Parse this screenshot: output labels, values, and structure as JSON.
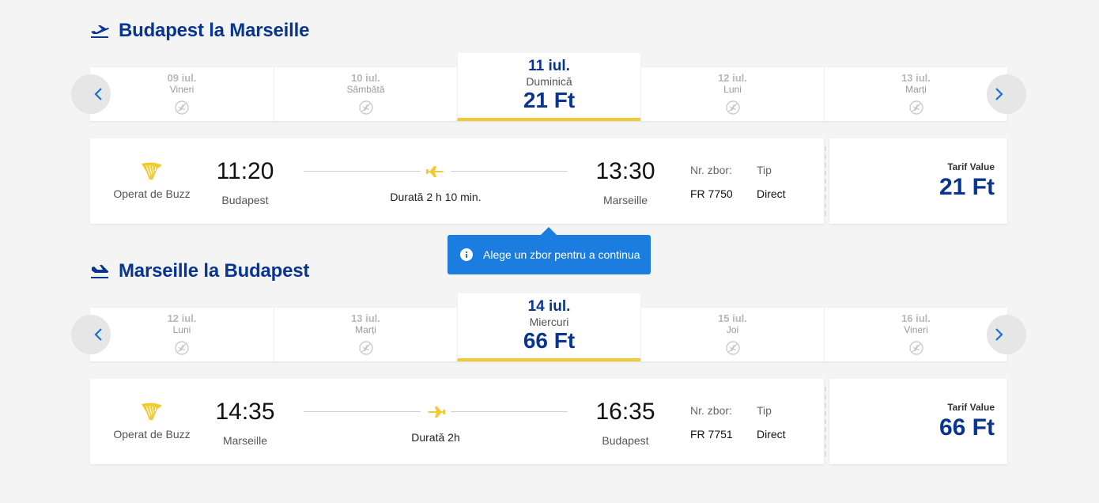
{
  "outbound": {
    "title": "Budapest la Marseille",
    "dates": [
      {
        "date": "09 iul.",
        "weekday": "Vineri",
        "available": false
      },
      {
        "date": "10 iul.",
        "weekday": "Sâmbătă",
        "available": false
      },
      {
        "date": "11 iul.",
        "weekday": "Duminică",
        "price": "21 Ft",
        "selected": true
      },
      {
        "date": "12 iul.",
        "weekday": "Luni",
        "available": false
      },
      {
        "date": "13 iul.",
        "weekday": "Marți",
        "available": false
      }
    ],
    "flight": {
      "operator": "Operat de Buzz",
      "depart_time": "11:20",
      "depart_city": "Budapest",
      "duration": "Durată 2 h 10 min.",
      "arrive_time": "13:30",
      "arrive_city": "Marseille",
      "flight_no_label": "Nr. zbor:",
      "flight_no": "FR 7750",
      "type_label": "Tip",
      "type": "Direct",
      "fare_label": "Tarif Value",
      "fare_price": "21 Ft"
    }
  },
  "toast": {
    "message": "Alege un zbor pentru a continua"
  },
  "inbound": {
    "title": "Marseille la Budapest",
    "dates": [
      {
        "date": "12 iul.",
        "weekday": "Luni",
        "available": false
      },
      {
        "date": "13 iul.",
        "weekday": "Marți",
        "available": false
      },
      {
        "date": "14 iul.",
        "weekday": "Miercuri",
        "price": "66 Ft",
        "selected": true
      },
      {
        "date": "15 iul.",
        "weekday": "Joi",
        "available": false
      },
      {
        "date": "16 iul.",
        "weekday": "Vineri",
        "available": false
      }
    ],
    "flight": {
      "operator": "Operat de Buzz",
      "depart_time": "14:35",
      "depart_city": "Marseille",
      "duration": "Durată 2h",
      "arrive_time": "16:35",
      "arrive_city": "Budapest",
      "flight_no_label": "Nr. zbor:",
      "flight_no": "FR 7751",
      "type_label": "Tip",
      "type": "Direct",
      "fare_label": "Tarif Value",
      "fare_price": "66 Ft"
    }
  },
  "colors": {
    "brand": "#073590",
    "accent": "#f1c931",
    "toast": "#1a7ddf"
  },
  "icons": [
    "plane-takeoff-icon",
    "plane-landing-icon",
    "chevron-left-icon",
    "chevron-right-icon",
    "no-flights-icon",
    "harp-logo-icon",
    "plane-icon",
    "info-icon"
  ]
}
